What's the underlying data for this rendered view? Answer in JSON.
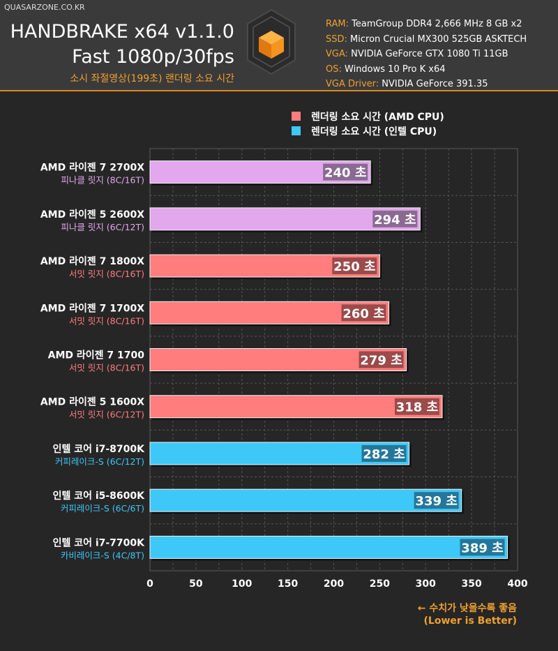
{
  "header": {
    "site": "QUASARZONE.CO.KR",
    "title": "HANDBRAKE x64 v1.1.0",
    "subtitle": "Fast 1080p/30fps",
    "desc": "소시 좌절영상(199초) 랜더링 소요 시간",
    "specs": [
      {
        "key": "RAM",
        "value": " TeamGroup DDR4 2,666 MHz 8 GB x2"
      },
      {
        "key": "SSD",
        "value": " Micron Crucial MX300 525GB ASKTECH"
      },
      {
        "key": "VGA",
        "value": " NVIDIA GeForce GTX 1080 Ti 11GB"
      },
      {
        "key": "OS",
        "value": " Windows 10 Pro K x64"
      },
      {
        "key": "VGA Driver",
        "value": " NVIDIA GeForce 391.35"
      }
    ]
  },
  "chart_data": {
    "type": "bar",
    "orientation": "horizontal",
    "unit": "초",
    "xlim": [
      0,
      400
    ],
    "xticks": [
      0,
      50,
      100,
      150,
      200,
      250,
      300,
      350,
      400
    ],
    "grid": true,
    "legend_position": "top-right",
    "legend": [
      {
        "label": "렌더링 소요 시간 (AMD CPU)",
        "color": "#ff7d7d"
      },
      {
        "label": "렌더링 소요 시간 (인텔 CPU)",
        "color": "#3ec8f8"
      }
    ],
    "categories": [
      {
        "name": "AMD 라이젠 7 2700X",
        "sub": "피나클 릿지 (8C/16T)",
        "value": 240,
        "color": "#e2a7ec",
        "sub_color": "#e2a7ec",
        "label_bg": "#8a6a92"
      },
      {
        "name": "AMD 라이젠 5 2600X",
        "sub": "피나클 릿지 (6C/12T)",
        "value": 294,
        "color": "#e2a7ec",
        "sub_color": "#e2a7ec",
        "label_bg": "#8a6a92"
      },
      {
        "name": "AMD 라이젠 7 1800X",
        "sub": "서밋 릿지 (8C/16T)",
        "value": 250,
        "color": "#ff7d7d",
        "sub_color": "#ff7d7d",
        "label_bg": "#9c4a4a"
      },
      {
        "name": "AMD 라이젠 7 1700X",
        "sub": "서밋 릿지 (8C/16T)",
        "value": 260,
        "color": "#ff7d7d",
        "sub_color": "#ff7d7d",
        "label_bg": "#9c4a4a"
      },
      {
        "name": "AMD 라이젠 7 1700",
        "sub": "서밋 릿지 (8C/16T)",
        "value": 279,
        "color": "#ff7d7d",
        "sub_color": "#ff7d7d",
        "label_bg": "#9c4a4a"
      },
      {
        "name": "AMD 라이젠 5 1600X",
        "sub": "서밋 릿지 (6C/12T)",
        "value": 318,
        "color": "#ff7d7d",
        "sub_color": "#ff7d7d",
        "label_bg": "#9c4a4a"
      },
      {
        "name": "인텔 코어 i7-8700K",
        "sub": "커피레이크-S (6C/12T)",
        "value": 282,
        "color": "#3ec8f8",
        "sub_color": "#3ec8f8",
        "label_bg": "#24779a"
      },
      {
        "name": "인텔 코어 i5-8600K",
        "sub": "커피레이크-S (6C/6T)",
        "value": 339,
        "color": "#3ec8f8",
        "sub_color": "#3ec8f8",
        "label_bg": "#24779a"
      },
      {
        "name": "인텔 코어 i7-7700K",
        "sub": "카비레이크-S (4C/8T)",
        "value": 389,
        "color": "#3ec8f8",
        "sub_color": "#3ec8f8",
        "label_bg": "#24779a"
      }
    ],
    "note": [
      "← 수치가 낮을수록 좋음",
      "(Lower is Better)"
    ]
  },
  "colors": {
    "background": "#262626",
    "header": "#3a3a3a",
    "accent": "#f0a030",
    "grid": "#555555"
  }
}
